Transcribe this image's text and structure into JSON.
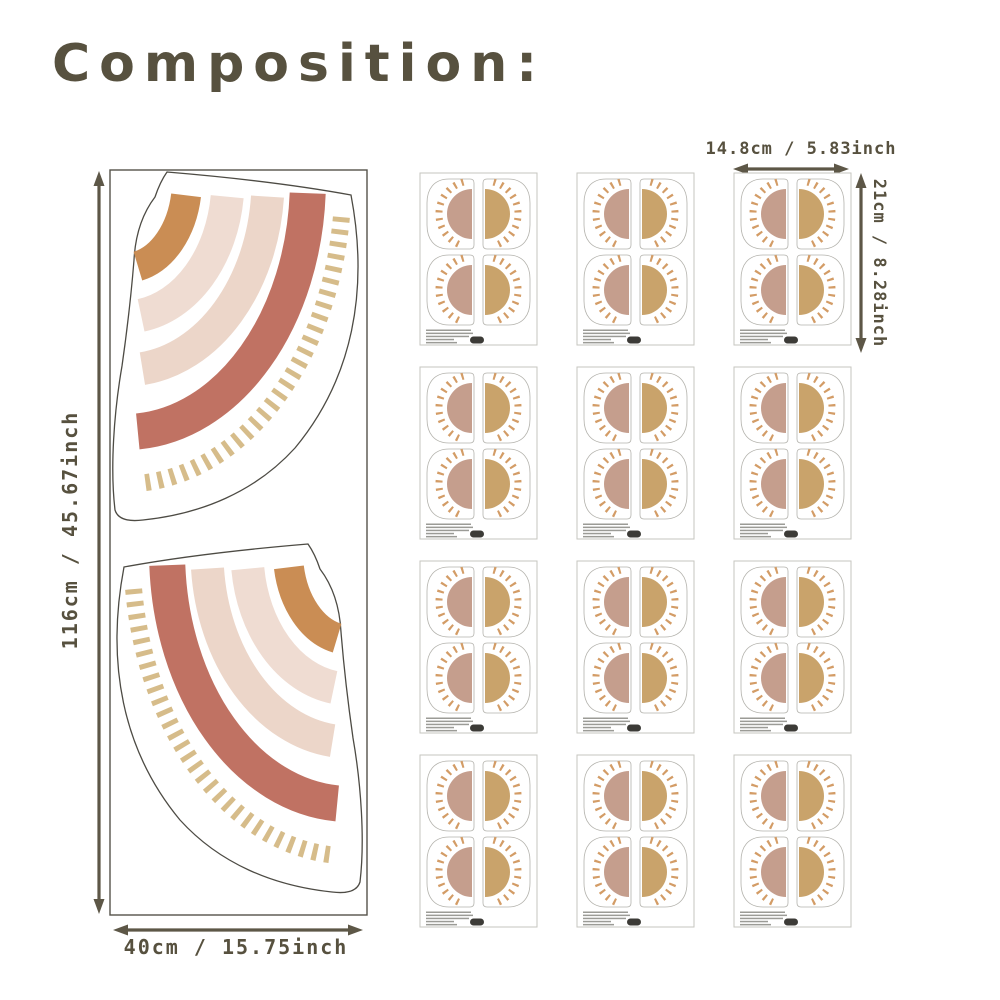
{
  "title": "Composition:",
  "left_panel": {
    "height_label": "116cm / 45.67inch",
    "width_label": "40cm / 15.75inch",
    "decal_count": 2,
    "decal_style": "quarter-rainbow of brush-stroke arcs with dashed tan trim, two mirrored pieces"
  },
  "sheet_grid": {
    "rows": 4,
    "cols": 3,
    "sheet_count": 12,
    "width_label": "14.8cm / 5.83inch",
    "height_label": "21cm / 8.28inch",
    "suns_per_sheet": 4,
    "fine_print": "illegible micro-print",
    "badge": "dark oval brand badge (illegible)"
  },
  "colors": {
    "text": "#57513f",
    "arrow": "#5d5747",
    "outline": "#4d4b44",
    "panel_border": "#55524a",
    "sheet_border": "#c6c5bf",
    "decal_outline": "#b3b2ac",
    "orange": "#ca8d54",
    "blush_light": "#efdcd2",
    "blush": "#ecd6c9",
    "rose": "#c07263",
    "tan_dash": "#d6bc8a",
    "sun_mauve": "#c59e8d",
    "sun_camel": "#c9a36b",
    "ray": "#d39c66",
    "badge": "#3c3b37",
    "fine_print": "#9b9b96"
  }
}
